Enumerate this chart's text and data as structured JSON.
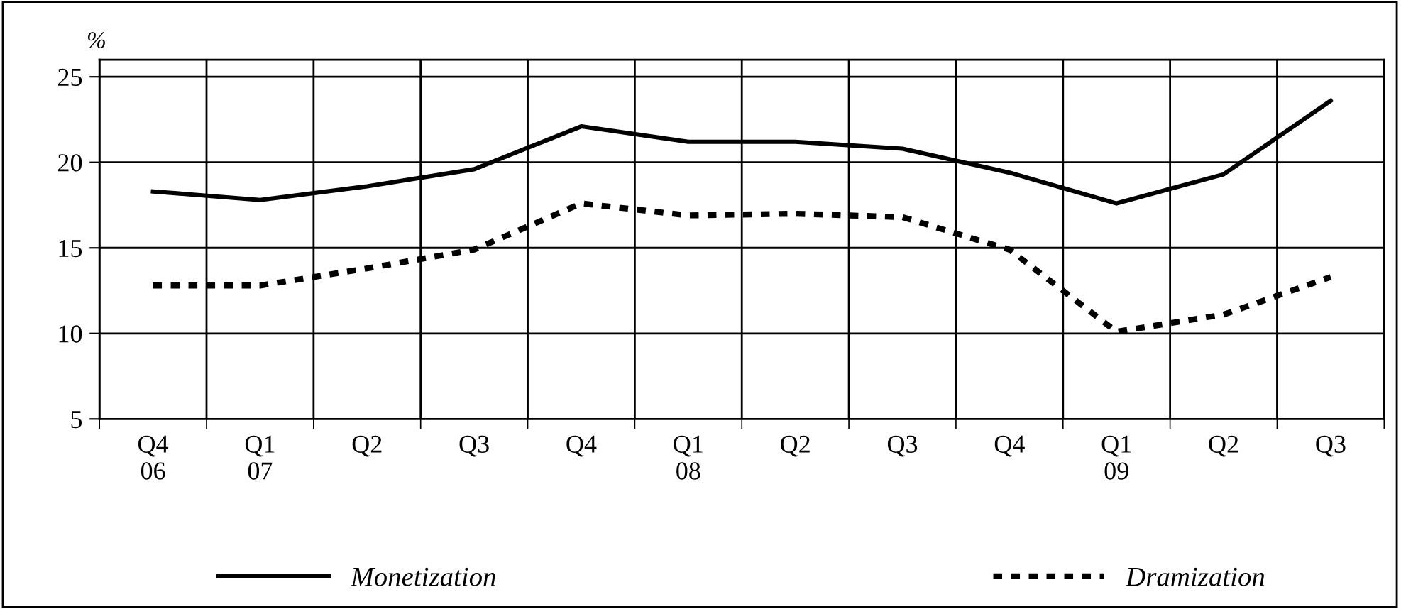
{
  "chart_data": {
    "type": "line",
    "ylabel": "%",
    "categories": [
      "Q4\n06",
      "Q1\n07",
      "Q2",
      "Q3",
      "Q4",
      "Q1\n08",
      "Q2",
      "Q3",
      "Q4",
      "Q1\n09",
      "Q2",
      "Q3"
    ],
    "series": [
      {
        "name": "Monetization",
        "color": "#000000",
        "line_style": "solid",
        "values": [
          18.3,
          17.8,
          18.6,
          19.6,
          22.1,
          21.2,
          21.2,
          20.8,
          19.4,
          17.6,
          19.3,
          23.6
        ]
      },
      {
        "name": "Dramization",
        "color": "#000000",
        "line_style": "dotted",
        "values": [
          12.8,
          12.8,
          13.8,
          14.9,
          17.6,
          16.9,
          17.0,
          16.8,
          14.9,
          10.1,
          11.1,
          13.3
        ]
      }
    ],
    "ylim": [
      5,
      26
    ],
    "yticks": [
      5,
      10,
      15,
      20,
      25
    ],
    "grid": true,
    "legend": "bottom",
    "marker": "none"
  }
}
